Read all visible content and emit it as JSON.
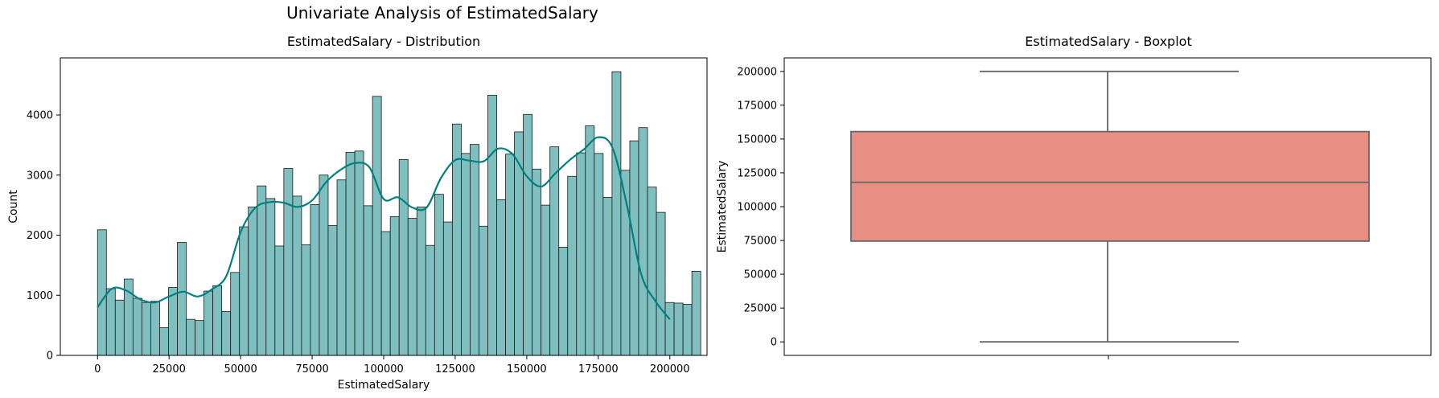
{
  "figure": {
    "title": "Univariate Analysis of EstimatedSalary"
  },
  "colors": {
    "hist_fill": "#7fbfbf",
    "hist_edge": "#1a1a1a",
    "kde": "#008080",
    "box_fill": "#e88e83",
    "box_line": "#666666"
  },
  "chart_data": [
    {
      "type": "bar",
      "title": "EstimatedSalary - Distribution",
      "xlabel": "EstimatedSalary",
      "ylabel": "Count",
      "xlim": [
        -13000,
        213000
      ],
      "ylim": [
        0,
        4950
      ],
      "xticks": [
        0,
        25000,
        50000,
        75000,
        100000,
        125000,
        150000,
        175000,
        200000
      ],
      "xtick_labels": [
        "0",
        "25000",
        "50000",
        "75000",
        "100000",
        "125000",
        "150000",
        "175000",
        "200000"
      ],
      "yticks": [
        0,
        1000,
        2000,
        3000,
        4000
      ],
      "ytick_labels": [
        "0",
        "1000",
        "2000",
        "3000",
        "4000"
      ],
      "bin_start": 0,
      "bin_width": 3100,
      "values": [
        2090,
        1110,
        920,
        1270,
        950,
        880,
        900,
        460,
        1130,
        1880,
        600,
        580,
        1070,
        1160,
        730,
        1380,
        2140,
        2470,
        2820,
        2610,
        1820,
        3110,
        2650,
        1840,
        2510,
        3000,
        2160,
        2920,
        3380,
        3400,
        2490,
        4310,
        2060,
        2310,
        3260,
        2280,
        2470,
        1830,
        2680,
        2220,
        3850,
        3360,
        3510,
        2150,
        4330,
        2590,
        3350,
        3720,
        4010,
        3100,
        2500,
        3470,
        1800,
        2980,
        3370,
        3820,
        3360,
        2630,
        4720,
        3080,
        3570,
        3790,
        2800,
        2380,
        880,
        870,
        850,
        1400
      ],
      "kde": {
        "x": [
          0,
          5000,
          10000,
          15000,
          20000,
          25000,
          30000,
          35000,
          40000,
          45000,
          50000,
          55000,
          60000,
          65000,
          70000,
          75000,
          80000,
          85000,
          90000,
          95000,
          100000,
          105000,
          110000,
          115000,
          120000,
          125000,
          130000,
          135000,
          140000,
          145000,
          150000,
          155000,
          160000,
          165000,
          170000,
          175000,
          180000,
          185000,
          190000,
          195000,
          200000
        ],
        "y": [
          800,
          1110,
          1080,
          930,
          880,
          980,
          1060,
          980,
          1100,
          1320,
          2050,
          2450,
          2550,
          2540,
          2470,
          2580,
          2890,
          3090,
          3200,
          3130,
          2600,
          2630,
          2460,
          2460,
          2950,
          3250,
          3240,
          3230,
          3440,
          3350,
          2980,
          2810,
          3030,
          3250,
          3430,
          3630,
          3450,
          2500,
          1350,
          900,
          600
        ]
      }
    },
    {
      "type": "box",
      "title": "EstimatedSalary - Boxplot",
      "ylabel": "EstimatedSalary",
      "ylim": [
        -10000,
        210000
      ],
      "yticks": [
        0,
        25000,
        50000,
        75000,
        100000,
        125000,
        150000,
        175000,
        200000
      ],
      "ytick_labels": [
        "0",
        "25000",
        "50000",
        "75000",
        "100000",
        "125000",
        "150000",
        "175000",
        "200000"
      ],
      "min": 0,
      "q1": 74500,
      "median": 118000,
      "q3": 155500,
      "max": 200000
    }
  ]
}
